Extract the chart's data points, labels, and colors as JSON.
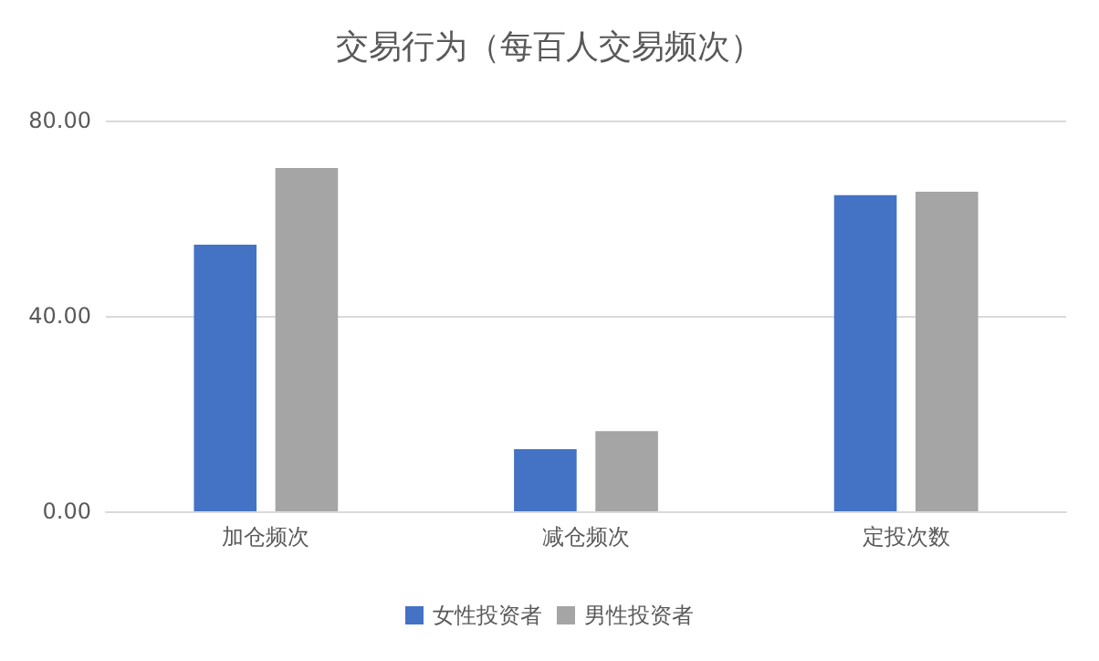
{
  "chart_data": {
    "type": "bar",
    "title": "交易行为（每百人交易频次）",
    "categories": [
      "加仓频次",
      "减仓频次",
      "定投次数"
    ],
    "series": [
      {
        "name": "女性投资者",
        "color": "#4472c4",
        "values": [
          54.6,
          12.7,
          64.7
        ]
      },
      {
        "name": "男性投资者",
        "color": "#a5a5a5",
        "values": [
          70.3,
          16.4,
          65.4
        ]
      }
    ],
    "ylim": [
      0,
      80
    ],
    "yticks": [
      {
        "value": 0,
        "label": "0.00"
      },
      {
        "value": 40,
        "label": "40.00"
      },
      {
        "value": 80,
        "label": "80.00"
      }
    ],
    "grid": "y",
    "legend": "bottom"
  }
}
